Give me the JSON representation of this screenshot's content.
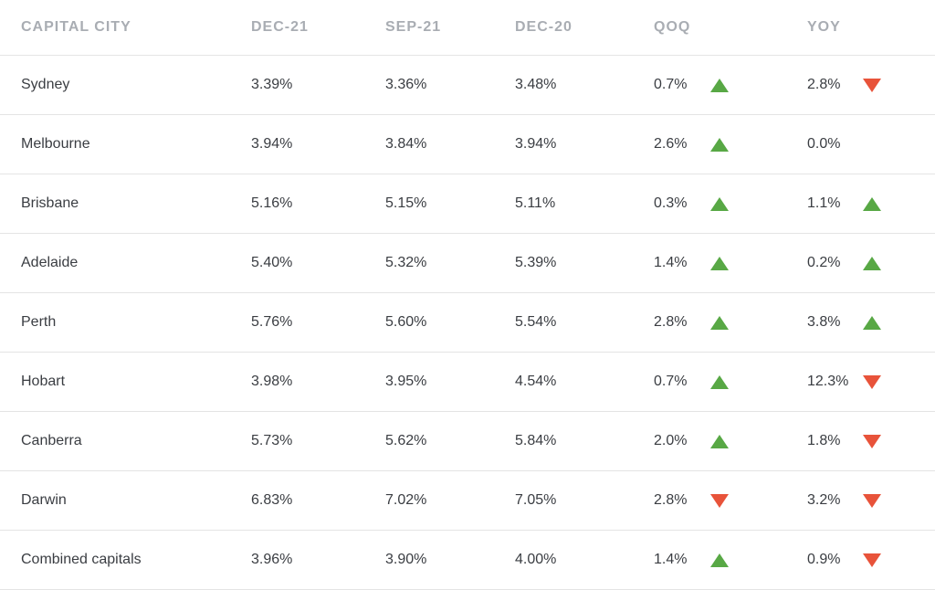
{
  "headers": {
    "city": "CAPITAL CITY",
    "dec21": "DEC-21",
    "sep21": "SEP-21",
    "dec20": "DEC-20",
    "qoq": "QOQ",
    "yoy": "YOY"
  },
  "colors": {
    "up": "#58a845",
    "down": "#e8533a",
    "header_text": "#a9adb3",
    "body_text": "#3a3d42",
    "divider": "#e4e4e4"
  },
  "rows": [
    {
      "city": "Sydney",
      "dec21": "3.39%",
      "sep21": "3.36%",
      "dec20": "3.48%",
      "qoq": "0.7%",
      "qoq_dir": "up",
      "yoy": "2.8%",
      "yoy_dir": "down"
    },
    {
      "city": "Melbourne",
      "dec21": "3.94%",
      "sep21": "3.84%",
      "dec20": "3.94%",
      "qoq": "2.6%",
      "qoq_dir": "up",
      "yoy": "0.0%",
      "yoy_dir": "none"
    },
    {
      "city": "Brisbane",
      "dec21": "5.16%",
      "sep21": "5.15%",
      "dec20": "5.11%",
      "qoq": "0.3%",
      "qoq_dir": "up",
      "yoy": "1.1%",
      "yoy_dir": "up"
    },
    {
      "city": "Adelaide",
      "dec21": "5.40%",
      "sep21": "5.32%",
      "dec20": "5.39%",
      "qoq": "1.4%",
      "qoq_dir": "up",
      "yoy": "0.2%",
      "yoy_dir": "up"
    },
    {
      "city": "Perth",
      "dec21": "5.76%",
      "sep21": "5.60%",
      "dec20": "5.54%",
      "qoq": "2.8%",
      "qoq_dir": "up",
      "yoy": "3.8%",
      "yoy_dir": "up"
    },
    {
      "city": "Hobart",
      "dec21": "3.98%",
      "sep21": "3.95%",
      "dec20": "4.54%",
      "qoq": "0.7%",
      "qoq_dir": "up",
      "yoy": "12.3%",
      "yoy_dir": "down"
    },
    {
      "city": "Canberra",
      "dec21": "5.73%",
      "sep21": "5.62%",
      "dec20": "5.84%",
      "qoq": "2.0%",
      "qoq_dir": "up",
      "yoy": "1.8%",
      "yoy_dir": "down"
    },
    {
      "city": "Darwin",
      "dec21": "6.83%",
      "sep21": "7.02%",
      "dec20": "7.05%",
      "qoq": "2.8%",
      "qoq_dir": "down",
      "yoy": "3.2%",
      "yoy_dir": "down"
    },
    {
      "city": "Combined capitals",
      "dec21": "3.96%",
      "sep21": "3.90%",
      "dec20": "4.00%",
      "qoq": "1.4%",
      "qoq_dir": "up",
      "yoy": "0.9%",
      "yoy_dir": "down"
    }
  ]
}
